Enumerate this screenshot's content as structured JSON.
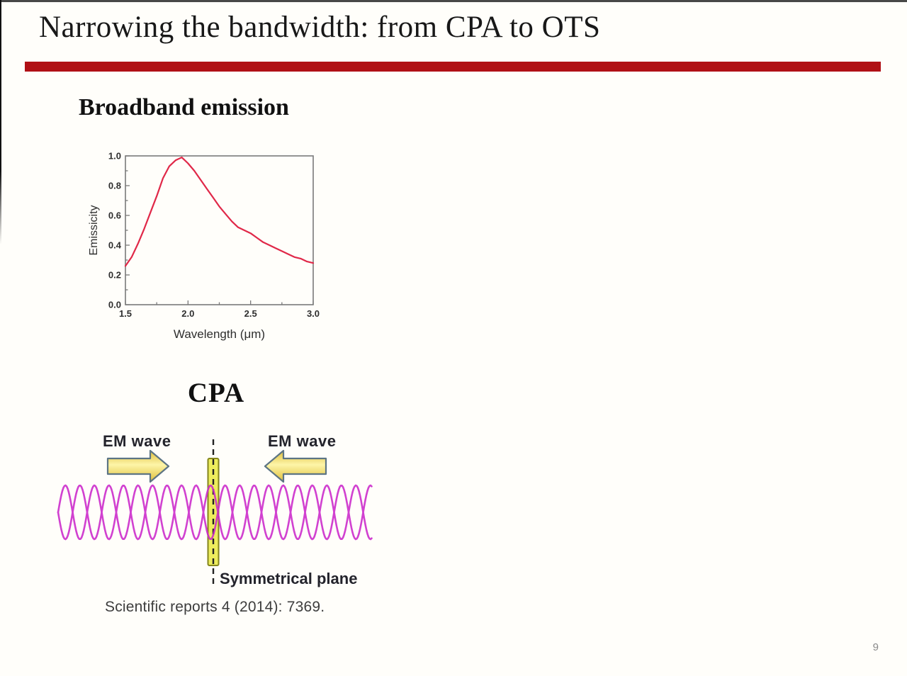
{
  "slide": {
    "title": "Narrowing the bandwidth: from CPA to OTS",
    "page_number": "9",
    "accent_color": "#b01015",
    "background_color": "#fffefa"
  },
  "broadband": {
    "heading": "Broadband emission"
  },
  "chart_data": {
    "type": "line",
    "title": "",
    "xlabel": "Wavelength (μm)",
    "ylabel": "Emissicity",
    "xlim": [
      1.5,
      3.0
    ],
    "ylim": [
      0.0,
      1.0
    ],
    "x_ticks": [
      1.5,
      2.0,
      2.5,
      3.0
    ],
    "x_minor_ticks": [
      1.75,
      2.25,
      2.75
    ],
    "y_ticks": [
      0.0,
      0.2,
      0.4,
      0.6,
      0.8,
      1.0
    ],
    "grid": false,
    "legend": false,
    "line_color": "#e02848",
    "frame_color": "#7a7a7a",
    "series": [
      {
        "name": "emissivity",
        "x": [
          1.5,
          1.55,
          1.6,
          1.65,
          1.7,
          1.75,
          1.8,
          1.85,
          1.9,
          1.95,
          2.0,
          2.05,
          2.1,
          2.15,
          2.2,
          2.25,
          2.3,
          2.35,
          2.4,
          2.45,
          2.5,
          2.55,
          2.6,
          2.65,
          2.7,
          2.75,
          2.8,
          2.85,
          2.9,
          2.95,
          3.0
        ],
        "y": [
          0.26,
          0.32,
          0.41,
          0.51,
          0.62,
          0.73,
          0.85,
          0.93,
          0.97,
          0.99,
          0.95,
          0.9,
          0.84,
          0.78,
          0.72,
          0.66,
          0.61,
          0.56,
          0.52,
          0.5,
          0.48,
          0.45,
          0.42,
          0.4,
          0.38,
          0.36,
          0.34,
          0.32,
          0.31,
          0.29,
          0.28
        ]
      }
    ]
  },
  "cpa": {
    "heading": "CPA",
    "left_wave_label": "EM wave",
    "right_wave_label": "EM wave",
    "plane_label": "Symmetrical plane",
    "wave_color": "#cb28cb",
    "arrow_fill_light": "#fdf5a8",
    "arrow_fill_dark": "#dfbe3a",
    "arrow_outline": "#5d7584",
    "bar_fill": "#eded5d",
    "bar_outline": "#84851c",
    "dash_color": "#222222"
  },
  "citation": "Scientific reports 4 (2014): 7369."
}
